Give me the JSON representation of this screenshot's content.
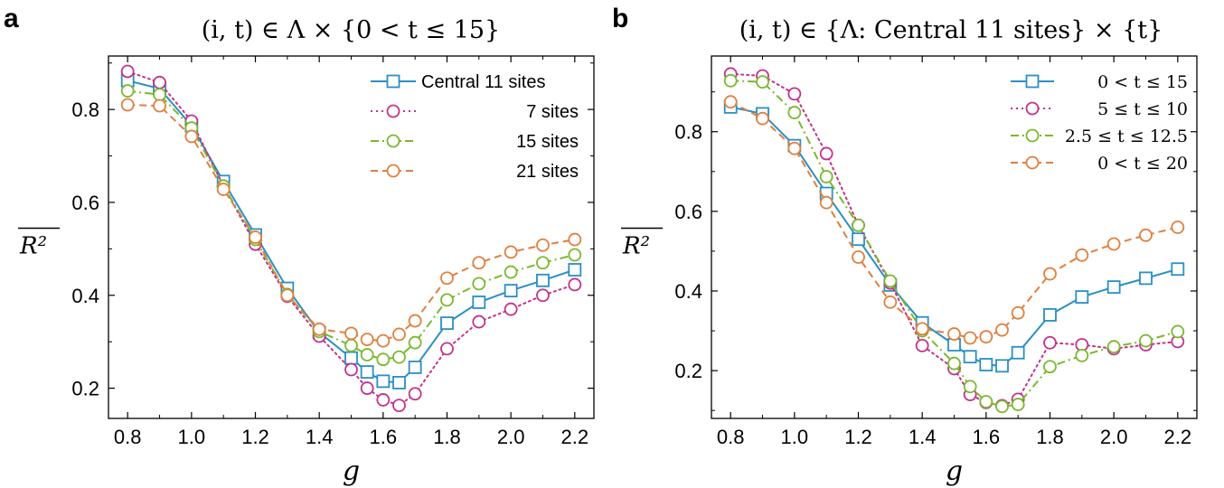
{
  "chart_data": [
    {
      "panel": "a",
      "type": "line",
      "title_parts": [
        "(i, t) ∈ Λ × {0 < t ≤ 15}"
      ],
      "title": "(i, t) ∈ Λ × {0 < t ≤ 15}",
      "xlabel": "g",
      "ylabel": "R²",
      "xlim": [
        0.74,
        2.26
      ],
      "ylim": [
        0.135,
        0.915
      ],
      "xticks": [
        0.8,
        1.0,
        1.2,
        1.4,
        1.6,
        1.8,
        2.0,
        2.2
      ],
      "xtick_labels": [
        "0.8",
        "1.0",
        "1.2",
        "1.4",
        "1.6",
        "1.8",
        "2.0",
        "2.2"
      ],
      "yticks": [
        0.2,
        0.4,
        0.6,
        0.8
      ],
      "ytick_labels": [
        "0.2",
        "0.4",
        "0.6",
        "0.8"
      ],
      "legend_position": "top-right",
      "x": [
        0.8,
        0.9,
        1.0,
        1.1,
        1.2,
        1.3,
        1.4,
        1.5,
        1.55,
        1.6,
        1.65,
        1.7,
        1.8,
        1.9,
        2.0,
        2.1,
        2.2
      ],
      "series": [
        {
          "name": "Central 11 sites",
          "color": "#2a8fc4",
          "marker": "square",
          "dash": "solid",
          "values": [
            0.862,
            0.845,
            0.765,
            0.645,
            0.53,
            0.415,
            0.32,
            0.265,
            0.235,
            0.215,
            0.212,
            0.245,
            0.34,
            0.385,
            0.41,
            0.432,
            0.455
          ]
        },
        {
          "name": "7  sites",
          "color": "#c4318a",
          "marker": "circle",
          "dash": "dotted",
          "values": [
            0.882,
            0.858,
            0.775,
            0.635,
            0.51,
            0.398,
            0.312,
            0.24,
            0.2,
            0.175,
            0.163,
            0.188,
            0.285,
            0.343,
            0.37,
            0.4,
            0.423
          ]
        },
        {
          "name": "15 sites",
          "color": "#7ab82e",
          "marker": "circle",
          "dash": "dashdot",
          "values": [
            0.84,
            0.832,
            0.76,
            0.635,
            0.52,
            0.402,
            0.322,
            0.292,
            0.272,
            0.262,
            0.267,
            0.298,
            0.39,
            0.425,
            0.45,
            0.47,
            0.487
          ]
        },
        {
          "name": "21 sites",
          "color": "#e07f3d",
          "marker": "circle",
          "dash": "dashed",
          "values": [
            0.81,
            0.808,
            0.742,
            0.628,
            0.525,
            0.4,
            0.327,
            0.318,
            0.305,
            0.302,
            0.316,
            0.345,
            0.437,
            0.47,
            0.493,
            0.508,
            0.52
          ]
        }
      ]
    },
    {
      "panel": "b",
      "type": "line",
      "title": "(i, t) ∈ {Λ: Central 11 sites} × {t}",
      "xlabel": "g",
      "ylabel": "R²",
      "xlim": [
        0.74,
        2.26
      ],
      "ylim": [
        0.08,
        0.99
      ],
      "xticks": [
        0.8,
        1.0,
        1.2,
        1.4,
        1.6,
        1.8,
        2.0,
        2.2
      ],
      "xtick_labels": [
        "0.8",
        "1.0",
        "1.2",
        "1.4",
        "1.6",
        "1.8",
        "2.0",
        "2.2"
      ],
      "yticks": [
        0.2,
        0.4,
        0.6,
        0.8
      ],
      "ytick_labels": [
        "0.2",
        "0.4",
        "0.6",
        "0.8"
      ],
      "legend_position": "top-right",
      "x": [
        0.8,
        0.9,
        1.0,
        1.1,
        1.2,
        1.3,
        1.4,
        1.5,
        1.55,
        1.6,
        1.65,
        1.7,
        1.8,
        1.9,
        2.0,
        2.1,
        2.2
      ],
      "series": [
        {
          "name": "0 < t ≤ 15",
          "color": "#2a8fc4",
          "marker": "square",
          "dash": "solid",
          "values": [
            0.862,
            0.845,
            0.765,
            0.645,
            0.53,
            0.415,
            0.32,
            0.265,
            0.235,
            0.215,
            0.212,
            0.245,
            0.34,
            0.385,
            0.41,
            0.432,
            0.455
          ]
        },
        {
          "name": "5 ≤ t ≤ 10",
          "color": "#c4318a",
          "marker": "circle",
          "dash": "dotted",
          "values": [
            0.945,
            0.94,
            0.895,
            0.745,
            0.565,
            0.42,
            0.263,
            0.205,
            0.14,
            0.12,
            0.112,
            0.128,
            0.27,
            0.265,
            0.255,
            0.265,
            0.273
          ]
        },
        {
          "name": "2.5 ≤ t ≤ 12.5",
          "color": "#7ab82e",
          "marker": "circle",
          "dash": "dashdot",
          "values": [
            0.928,
            0.925,
            0.848,
            0.687,
            0.565,
            0.425,
            0.3,
            0.218,
            0.16,
            0.122,
            0.11,
            0.115,
            0.21,
            0.238,
            0.26,
            0.275,
            0.298
          ]
        },
        {
          "name": "0 < t ≤ 20",
          "color": "#e07f3d",
          "marker": "circle",
          "dash": "dashed",
          "values": [
            0.875,
            0.833,
            0.758,
            0.622,
            0.485,
            0.372,
            0.305,
            0.292,
            0.282,
            0.285,
            0.302,
            0.345,
            0.443,
            0.49,
            0.518,
            0.54,
            0.56
          ]
        }
      ]
    }
  ],
  "panels": [
    {
      "letter": "a",
      "title": "(i, t) ∈ Λ × {0 < t ≤ 15}"
    },
    {
      "letter": "b",
      "title": "(i, t) ∈ {Λ: Central 11 sites} × {t}"
    }
  ]
}
